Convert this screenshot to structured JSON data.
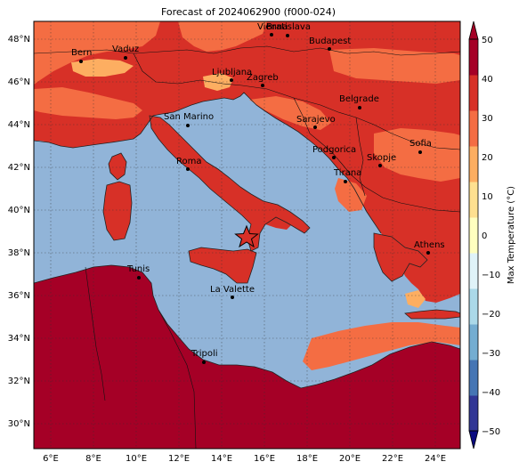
{
  "title": "Forecast of 2024062900 (f000-024)",
  "colorbar": {
    "label": "Max Temperature (°C)",
    "ticks": [
      "50",
      "40",
      "30",
      "20",
      "10",
      "0",
      "−10",
      "−20",
      "−30",
      "−40",
      "−50"
    ],
    "colors": [
      "#313695",
      "#4575b4",
      "#74add1",
      "#abd9e9",
      "#e0f3f8",
      "#ffffbf",
      "#fee090",
      "#fdae61",
      "#f46d43",
      "#d73027",
      "#a50026"
    ]
  },
  "axes": {
    "x_ticks": [
      "6°E",
      "8°E",
      "10°E",
      "12°E",
      "14°E",
      "16°E",
      "18°E",
      "20°E",
      "22°E",
      "24°E"
    ],
    "y_ticks": [
      "48°N",
      "46°N",
      "44°N",
      "42°N",
      "40°N",
      "38°N",
      "36°N",
      "34°N",
      "32°N",
      "30°N"
    ]
  },
  "colors": {
    "sea": "#91b4d8",
    "land_hot": "#d73027",
    "land_warm": "#f46d43",
    "land_mild": "#fdae61",
    "land_very_hot": "#a50026"
  },
  "cities": [
    {
      "name": "Bern"
    },
    {
      "name": "Vaduz"
    },
    {
      "name": "Vienna"
    },
    {
      "name": "Bratislava"
    },
    {
      "name": "Budapest"
    },
    {
      "name": "Ljubljana"
    },
    {
      "name": "Zagreb"
    },
    {
      "name": "Belgrade"
    },
    {
      "name": "San Marino"
    },
    {
      "name": "Sarajevo"
    },
    {
      "name": "Sofia"
    },
    {
      "name": "Podgorica"
    },
    {
      "name": "Skopje"
    },
    {
      "name": "Roma"
    },
    {
      "name": "Tirana"
    },
    {
      "name": "Athens"
    },
    {
      "name": "Tunis"
    },
    {
      "name": "La Valette"
    },
    {
      "name": "Tripoli"
    }
  ],
  "marker": {
    "symbol": "star"
  }
}
